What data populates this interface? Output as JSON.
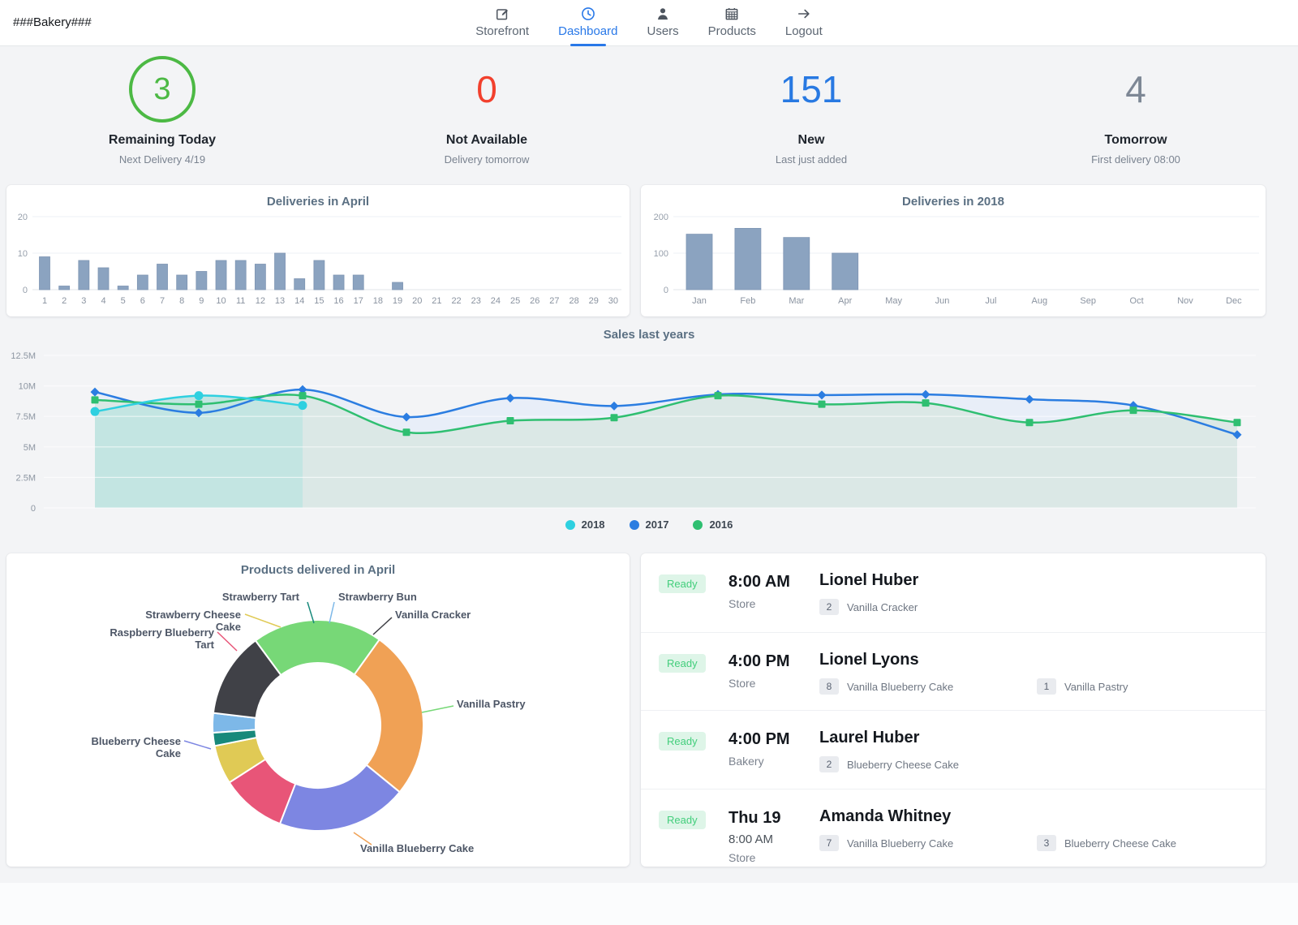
{
  "header": {
    "brand": "###Bakery###",
    "active_color": "#2878e8",
    "nav": [
      {
        "label": "Storefront",
        "icon": "compose-icon",
        "active": false
      },
      {
        "label": "Dashboard",
        "icon": "clock-icon",
        "active": true
      },
      {
        "label": "Users",
        "icon": "user-icon",
        "active": false
      },
      {
        "label": "Products",
        "icon": "calendar-icon",
        "active": false
      },
      {
        "label": "Logout",
        "icon": "arrow-right-icon",
        "active": false
      }
    ]
  },
  "stats": [
    {
      "value": "3",
      "label": "Remaining Today",
      "sub": "Next Delivery 4/19",
      "color": "#4cb944",
      "circled": true
    },
    {
      "value": "0",
      "label": "Not Available",
      "sub": "Delivery tomorrow",
      "color": "#f2402d",
      "circled": false
    },
    {
      "value": "151",
      "label": "New",
      "sub": "Last just added",
      "color": "#2879e2",
      "circled": false
    },
    {
      "value": "4",
      "label": "Tomorrow",
      "sub": "First delivery 08:00",
      "color": "#7d8795",
      "circled": false
    }
  ],
  "chart_data": [
    {
      "id": "deliveries-in-april",
      "type": "bar",
      "title": "Deliveries in April",
      "categories": [
        "1",
        "2",
        "3",
        "4",
        "5",
        "6",
        "7",
        "8",
        "9",
        "10",
        "11",
        "12",
        "13",
        "14",
        "15",
        "16",
        "17",
        "18",
        "19",
        "20",
        "21",
        "22",
        "23",
        "24",
        "25",
        "26",
        "27",
        "28",
        "29",
        "30"
      ],
      "values": [
        9,
        1,
        8,
        6,
        1,
        4,
        7,
        4,
        5,
        8,
        8,
        7,
        10,
        3,
        8,
        4,
        4,
        0,
        2,
        0,
        0,
        0,
        0,
        0,
        0,
        0,
        0,
        0,
        0,
        0
      ],
      "ylim": [
        0,
        20
      ],
      "yticks": [
        0,
        10,
        20
      ],
      "bar_color": "#8ba3c0",
      "bar_edge": "#7e95b3",
      "grid": true
    },
    {
      "id": "deliveries-in-2018",
      "type": "bar",
      "title": "Deliveries in 2018",
      "categories": [
        "Jan",
        "Feb",
        "Mar",
        "Apr",
        "May",
        "Jun",
        "Jul",
        "Aug",
        "Sep",
        "Oct",
        "Nov",
        "Dec"
      ],
      "values": [
        152,
        168,
        143,
        100,
        0,
        0,
        0,
        0,
        0,
        0,
        0,
        0
      ],
      "ylim": [
        0,
        200
      ],
      "yticks": [
        0,
        100,
        200
      ],
      "bar_color": "#8ba3c0",
      "bar_edge": "#7e95b3",
      "grid": true
    },
    {
      "id": "sales-last-years",
      "type": "line",
      "title": "Sales last years",
      "unit": "millions",
      "ylim": [
        0,
        12500000
      ],
      "ytick_labels": [
        "0",
        "2.5M",
        "5M",
        "7.5M",
        "10M",
        "12.5M"
      ],
      "legend": [
        "2018",
        "2017",
        "2016"
      ],
      "legend_position": "bottom-center",
      "grid": true,
      "series": [
        {
          "name": "2018",
          "color": "#2ed0e0",
          "area_color": "#c3e5e2",
          "marker": "circle",
          "values_millions": [
            7.9,
            9.2,
            8.4
          ]
        },
        {
          "name": "2017",
          "color": "#2b7de1",
          "area_color": "#e8eef8",
          "marker": "diamond",
          "values_millions": [
            9.5,
            7.8,
            9.7,
            7.45,
            9.0,
            8.35,
            9.3,
            9.25,
            9.3,
            8.9,
            8.4,
            6.0
          ]
        },
        {
          "name": "2016",
          "color": "#2fbf71",
          "area_color": "#dbe8e6",
          "marker": "square",
          "values_millions": [
            8.85,
            8.5,
            9.2,
            6.2,
            7.15,
            7.4,
            9.2,
            8.5,
            8.6,
            7.0,
            8.0,
            7.0
          ]
        }
      ]
    },
    {
      "id": "products-delivered-in-april",
      "type": "pie",
      "title": "Products delivered in April",
      "labels": [
        "Strawberry Bun",
        "Vanilla Cracker",
        "Vanilla Pastry",
        "Vanilla Blueberry Cake",
        "Blueberry Cheese Cake",
        "Raspberry Blueberry Tart",
        "Strawberry Cheese Cake",
        "Strawberry Tart"
      ],
      "values_percent": [
        3,
        13,
        20,
        26,
        20,
        10,
        6,
        2
      ],
      "colors": [
        "#7db8e8",
        "#404147",
        "#77d877",
        "#f0a155",
        "#7d86e2",
        "#e85578",
        "#e0ca55",
        "#17897b"
      ]
    }
  ],
  "deliveries": {
    "status_badge": {
      "bg": "#def5e8",
      "text": "#43ce7c"
    },
    "rows": [
      {
        "status": "Ready",
        "time": "8:00 AM",
        "place": "Store",
        "name": "Lionel Huber",
        "items": [
          {
            "qty": "2",
            "label": "Vanilla Cracker"
          }
        ]
      },
      {
        "status": "Ready",
        "time": "4:00 PM",
        "place": "Store",
        "name": "Lionel Lyons",
        "items": [
          {
            "qty": "8",
            "label": "Vanilla Blueberry Cake"
          },
          {
            "qty": "1",
            "label": "Vanilla Pastry"
          }
        ]
      },
      {
        "status": "Ready",
        "time": "4:00 PM",
        "place": "Bakery",
        "name": "Laurel Huber",
        "items": [
          {
            "qty": "2",
            "label": "Blueberry Cheese Cake"
          }
        ]
      },
      {
        "status": "Ready",
        "time": "Thu 19",
        "time_sub": "8:00 AM",
        "place": "Store",
        "name": "Amanda Whitney",
        "items": [
          {
            "qty": "7",
            "label": "Vanilla Blueberry Cake"
          },
          {
            "qty": "3",
            "label": "Blueberry Cheese Cake"
          }
        ]
      }
    ]
  }
}
